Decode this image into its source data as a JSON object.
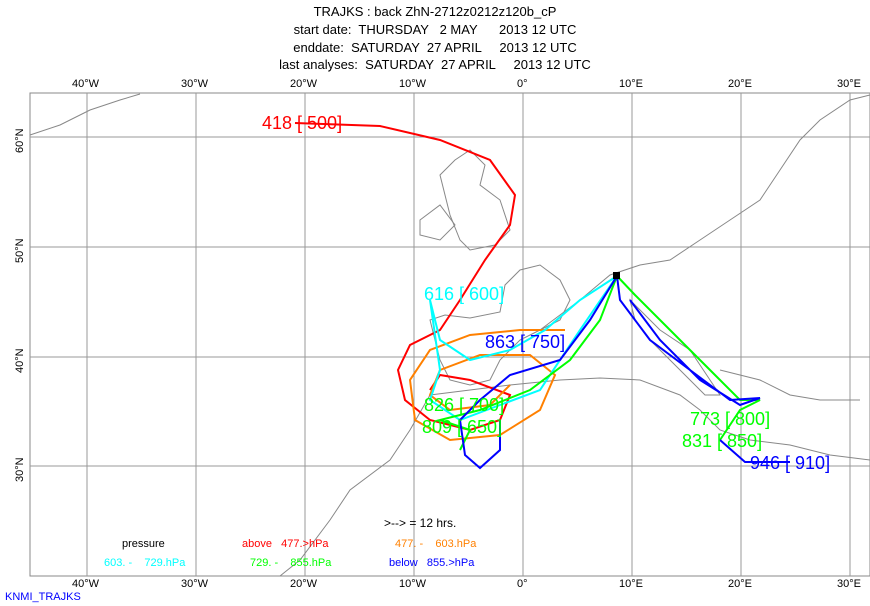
{
  "header": {
    "title": "TRAJKS : back ZhN-2712z0212z120b_cP",
    "start": "start date:  THURSDAY   2 MAY      2013 12 UTC",
    "end": "enddate:  SATURDAY  27 APRIL     2013 12 UTC",
    "last": "last analyses:  SATURDAY  27 APRIL     2013 12 UTC"
  },
  "lon_ticks": [
    "40°W",
    "30°W",
    "20°W",
    "10°W",
    "0°",
    "10°E",
    "20°E",
    "30°E"
  ],
  "lat_ticks": [
    "60°N",
    "50°N",
    "40°N",
    "30°N"
  ],
  "labels": [
    {
      "text": "418 [ 500]",
      "color": "#ff0000"
    },
    {
      "text": "616 [ 600]",
      "color": "#00ffff"
    },
    {
      "text": "863 [ 750]",
      "color": "#0000ff"
    },
    {
      "text": "826 [ 700]",
      "color": "#00ff00"
    },
    {
      "text": "809 [ 650]",
      "color": "#00ff00"
    },
    {
      "text": "773 [ 800]",
      "color": "#00ff00"
    },
    {
      "text": "831 [ 850]",
      "color": "#00ff00"
    },
    {
      "text": "946 [ 910]",
      "color": "#0000ff"
    }
  ],
  "legend": {
    "interval": ">--> = 12 hrs.",
    "title": "pressure",
    "above": "above   477.>hPa",
    "orange": "477. -    603.hPa",
    "cyan": "603. -    729.hPa",
    "green": "729. -    855.hPa",
    "below": "below   855.>hPa"
  },
  "footer": "KNMI_TRAJKS",
  "colors": {
    "red": "#ff0000",
    "orange": "#ff8000",
    "cyan": "#00ffff",
    "green": "#00ff00",
    "blue": "#0000ff"
  }
}
